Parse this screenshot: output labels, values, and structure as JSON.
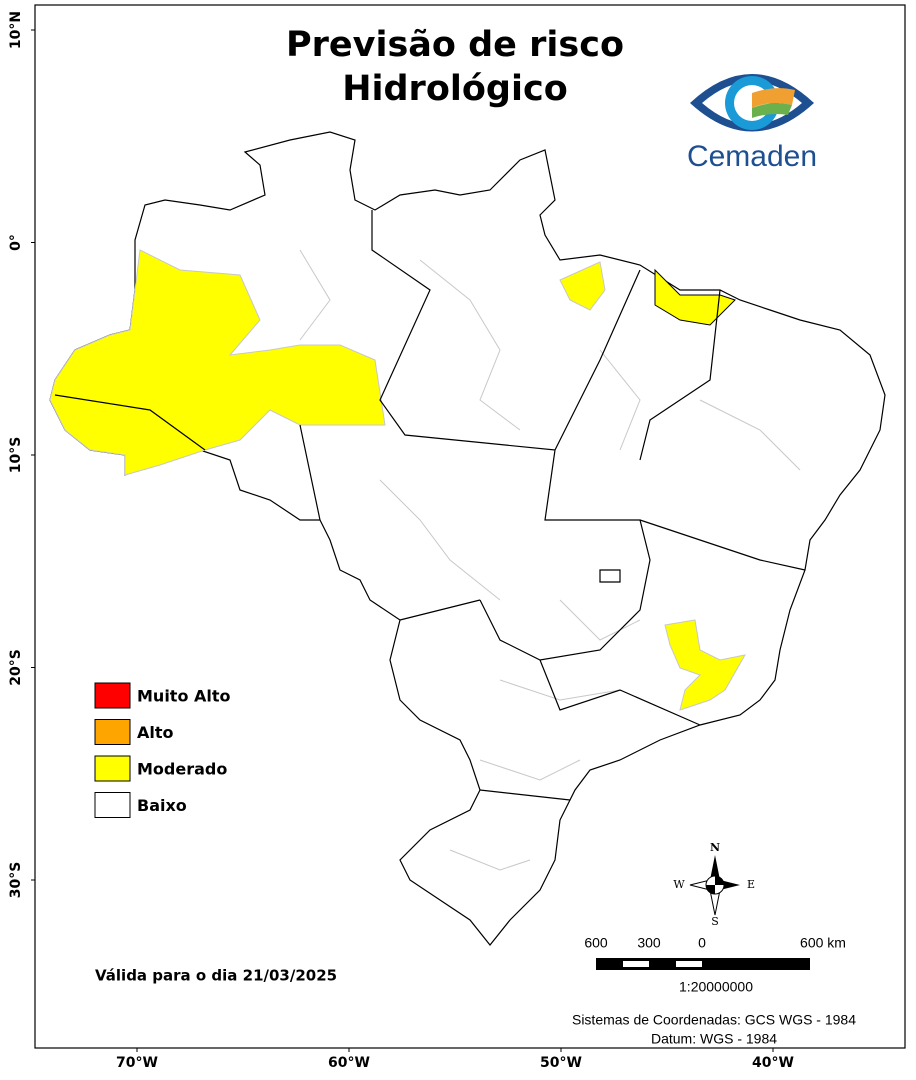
{
  "title": [
    "Previsão de risco",
    "Hidrológico"
  ],
  "logo": {
    "text": "Cemaden"
  },
  "legend": {
    "items": [
      {
        "label": "Muito Alto",
        "color": "#ff0000"
      },
      {
        "label": "Alto",
        "color": "#ffa500"
      },
      {
        "label": "Moderado",
        "color": "#ffff00"
      },
      {
        "label": "Baixo",
        "color": "#ffffff"
      }
    ]
  },
  "validity": "Válida para o dia 21/03/2025",
  "axes": {
    "longitude": [
      "70°W",
      "60°W",
      "50°W",
      "40°W"
    ],
    "latitude": [
      "10°N",
      "0°",
      "10°S",
      "20°S",
      "30°S"
    ]
  },
  "compass": {
    "north": "N",
    "east": "E",
    "south": "S",
    "west": "W"
  },
  "scale_bar": {
    "labels": [
      "600",
      "300",
      "0",
      "600 km"
    ],
    "ratio": "1:20000000"
  },
  "coordinate_system": [
    "Sistemas de Coordenadas: GCS WGS - 1984",
    "Datum: WGS - 1984"
  ]
}
